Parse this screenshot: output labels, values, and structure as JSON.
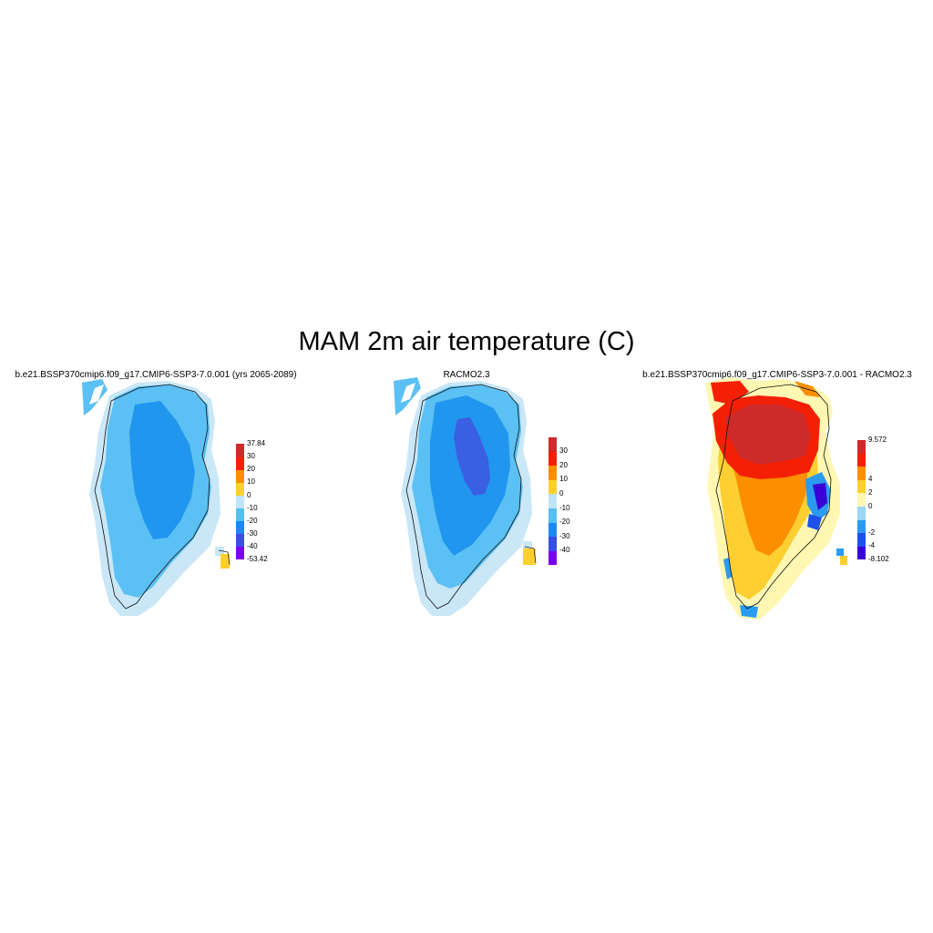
{
  "title": "MAM 2m air temperature (C)",
  "panels": [
    {
      "id": "model",
      "title": "b.e21.BSSP370cmip6.f09_g17.CMIP6-SSP3-7.0.001 (yrs 2065-2089)",
      "colorbar": {
        "colors": [
          "#7a00f0",
          "#3a4fe0",
          "#1e88f0",
          "#55bff2",
          "#bfe4f7",
          "#fdd02e",
          "#fb8f00",
          "#f42006",
          "#cd2a2a"
        ],
        "labels": [
          "-53.42",
          "-40",
          "-30",
          "-20",
          "-10",
          "0",
          "10",
          "20",
          "30",
          "37.84"
        ]
      },
      "zones": [
        "#c9e7f7",
        "#5bc0f3",
        "#2196ef",
        "#fdd02e"
      ]
    },
    {
      "id": "obs",
      "title": "RACMO2.3",
      "colorbar": {
        "colors": [
          "#7a00f0",
          "#3a4fe0",
          "#1e88f0",
          "#55bff2",
          "#bfe4f7",
          "#fdd02e",
          "#fb8f00",
          "#f42006",
          "#cd2a2a"
        ],
        "labels": [
          "-40",
          "-30",
          "-20",
          "-10",
          "0",
          "10",
          "20",
          "30"
        ]
      },
      "zones": [
        "#c9e7f7",
        "#5bc0f3",
        "#2196ef",
        "#3a5fe3",
        "#fdd02e"
      ]
    },
    {
      "id": "diff",
      "title": "b.e21.BSSP370cmip6.f09_g17.CMIP6-SSP3-7.0.001 - RACMO2.3",
      "colorbar": {
        "colors": [
          "#3a00d8",
          "#1c52ea",
          "#2a9bf0",
          "#9dd5f5",
          "#fff7b2",
          "#fdcf30",
          "#fb8f00",
          "#f42006",
          "#cd2a2a"
        ],
        "labels": [
          "-8.102",
          "-4",
          "-2",
          "0",
          "2",
          "4",
          "9.572"
        ]
      },
      "zones": [
        "#fff7b2",
        "#fdcf30",
        "#fb8f00",
        "#f42006",
        "#cd2a2a",
        "#2a9bf0",
        "#3a00d8"
      ]
    }
  ]
}
